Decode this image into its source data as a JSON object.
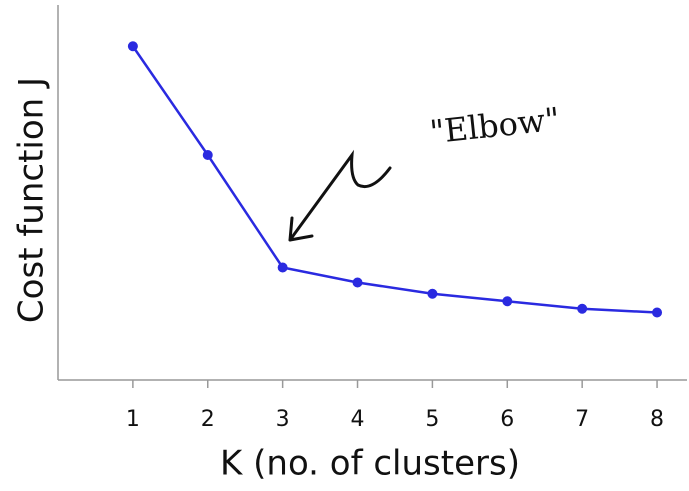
{
  "chart_data": {
    "type": "line",
    "x_label": "K (no. of clusters)",
    "y_label": "Cost function J",
    "annotation": "\"Elbow\"",
    "x": [
      1,
      2,
      3,
      4,
      5,
      6,
      7,
      8
    ],
    "series": [
      {
        "color": "#2a2ae0",
        "values": [
          89,
          60,
          30,
          26,
          23,
          21,
          19,
          18
        ]
      }
    ],
    "xlim": [
      0,
      8.4
    ],
    "xticks": [
      1,
      2,
      3,
      4,
      5,
      6,
      7,
      8
    ],
    "ylim": [
      0,
      100
    ]
  }
}
